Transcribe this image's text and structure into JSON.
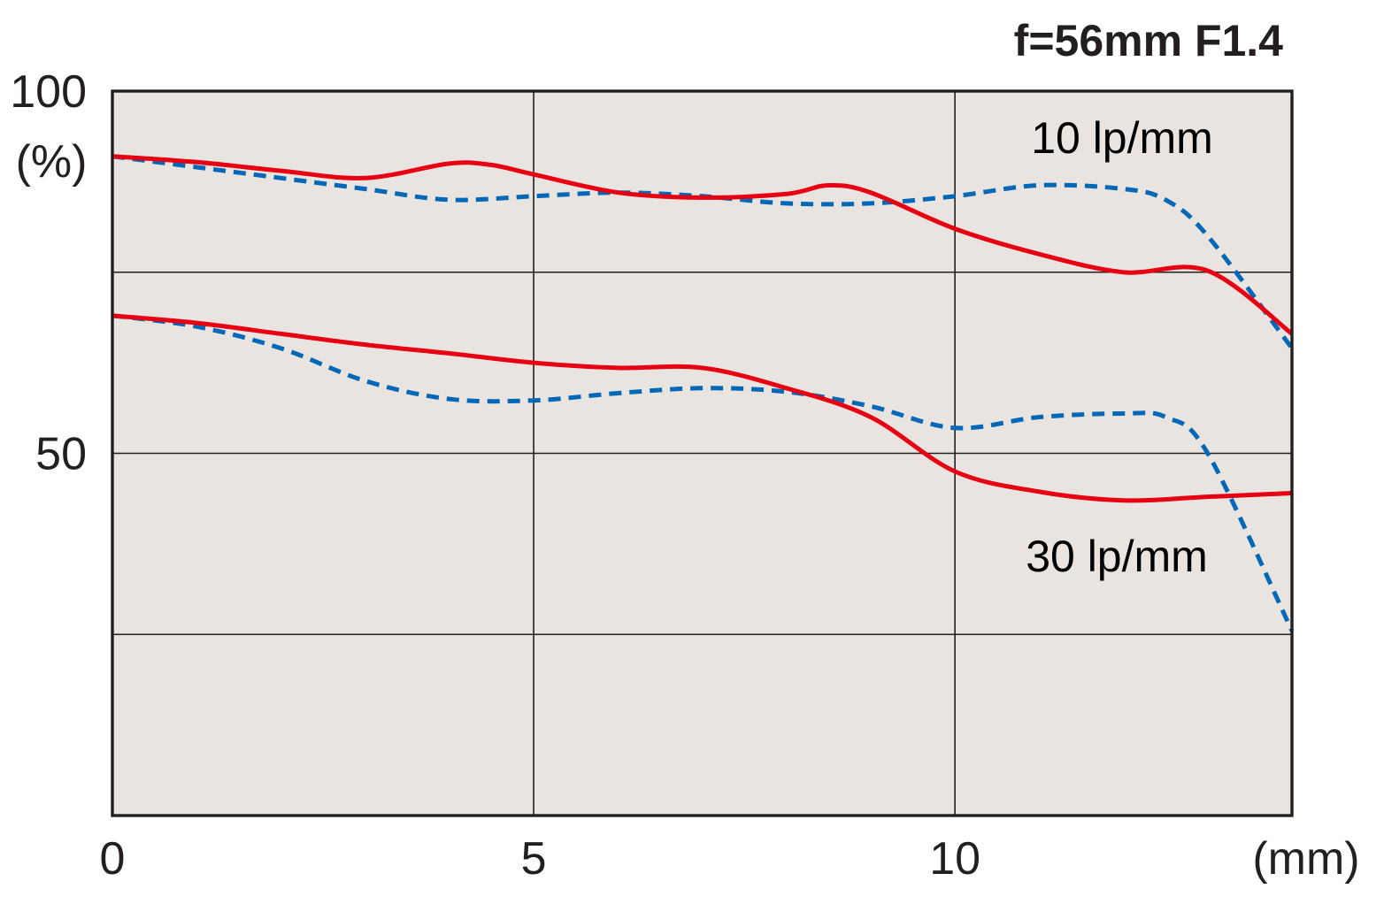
{
  "chart_data": {
    "type": "line",
    "title": "f=56mm F1.4",
    "xlabel": "(mm)",
    "ylabel": "(%)",
    "xlim": [
      0,
      14
    ],
    "ylim": [
      0,
      100
    ],
    "xticks": [
      0,
      5,
      10
    ],
    "yticks": [
      50,
      100
    ],
    "x_tick_labels": [
      "0",
      "5",
      "10"
    ],
    "y_tick_labels": [
      "50",
      "100"
    ],
    "grid": true,
    "background": "#e9e4e0",
    "annotations": [
      "10 lp/mm",
      "30 lp/mm"
    ],
    "series": [
      {
        "group": "10 lp/mm",
        "style": "solid",
        "color": "#e60012",
        "points": [
          [
            0,
            91
          ],
          [
            1,
            90.2
          ],
          [
            2,
            89
          ],
          [
            3,
            88
          ],
          [
            4,
            90
          ],
          [
            4.5,
            89.8
          ],
          [
            5,
            88.5
          ],
          [
            6,
            86
          ],
          [
            7,
            85.3
          ],
          [
            8,
            85.8
          ],
          [
            8.5,
            87
          ],
          [
            9,
            86
          ],
          [
            10,
            81
          ],
          [
            11,
            77.5
          ],
          [
            12,
            75
          ],
          [
            13,
            75.2
          ],
          [
            14,
            66.5
          ]
        ]
      },
      {
        "group": "10 lp/mm",
        "style": "dashed",
        "color": "#0068b7",
        "points": [
          [
            0,
            91
          ],
          [
            1,
            89.5
          ],
          [
            2,
            88
          ],
          [
            3,
            86.5
          ],
          [
            4,
            85
          ],
          [
            5,
            85.5
          ],
          [
            6,
            86
          ],
          [
            7,
            85.5
          ],
          [
            8,
            84.5
          ],
          [
            9,
            84.5
          ],
          [
            10,
            85.5
          ],
          [
            11,
            87
          ],
          [
            12,
            86.5
          ],
          [
            12.5,
            85
          ],
          [
            13,
            80
          ],
          [
            14,
            64.5
          ]
        ]
      },
      {
        "group": "30 lp/mm",
        "style": "solid",
        "color": "#e60012",
        "points": [
          [
            0,
            69
          ],
          [
            1,
            68
          ],
          [
            2,
            66.5
          ],
          [
            3,
            65
          ],
          [
            4,
            63.8
          ],
          [
            5,
            62.5
          ],
          [
            6,
            61.8
          ],
          [
            7,
            61.8
          ],
          [
            8,
            59
          ],
          [
            9,
            55
          ],
          [
            10,
            47.5
          ],
          [
            11,
            44.7
          ],
          [
            12,
            43.5
          ],
          [
            13,
            44
          ],
          [
            14,
            44.5
          ]
        ]
      },
      {
        "group": "30 lp/mm",
        "style": "dashed",
        "color": "#0068b7",
        "points": [
          [
            0,
            69
          ],
          [
            1,
            67.5
          ],
          [
            2,
            64.5
          ],
          [
            3,
            60
          ],
          [
            4,
            57.5
          ],
          [
            5,
            57.3
          ],
          [
            6,
            58.3
          ],
          [
            7,
            59
          ],
          [
            8,
            58.5
          ],
          [
            9,
            56.5
          ],
          [
            10,
            53.5
          ],
          [
            11,
            55
          ],
          [
            12,
            55.5
          ],
          [
            12.5,
            55
          ],
          [
            13,
            50
          ],
          [
            14,
            25.5
          ]
        ]
      }
    ]
  }
}
